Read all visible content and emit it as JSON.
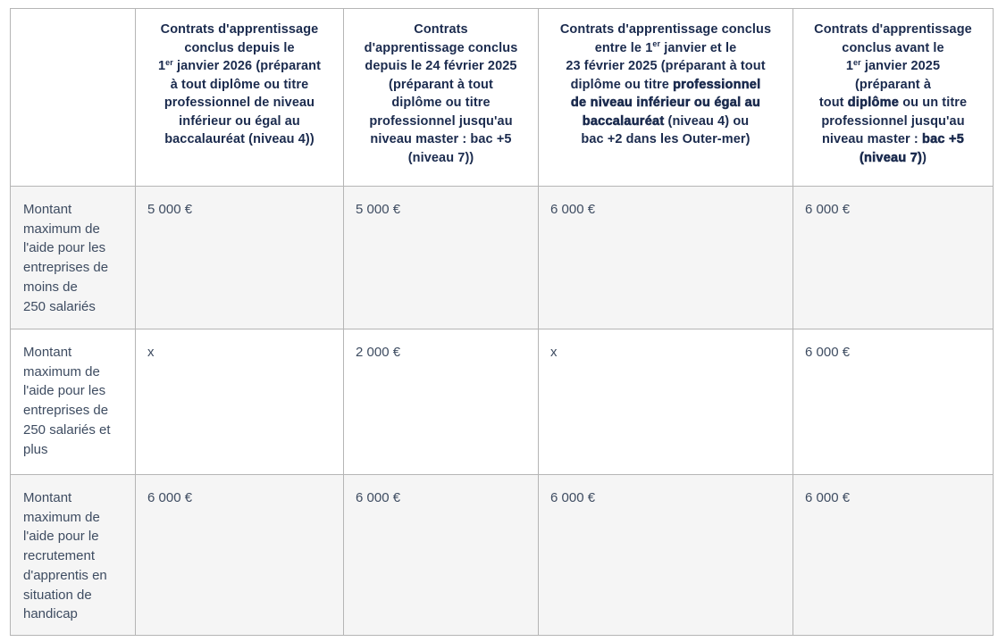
{
  "colors": {
    "header_text": "#1b2b4e",
    "body_text": "#3e4c61",
    "stripe_row_background": "#f5f5f5",
    "border": "#b5b5b5",
    "page_background": "#ffffff"
  },
  "table": {
    "corner_label": "",
    "columns": [
      {
        "id": "contracts-since-jan-2026",
        "runs": [
          {
            "t": "Contrats d'apprentissage"
          },
          {
            "br": true
          },
          {
            "t": "conclus depuis le"
          },
          {
            "br": true
          },
          {
            "t": "1"
          },
          {
            "t": "er",
            "sup": true
          },
          {
            "t": " janvier 2026 (préparant"
          },
          {
            "br": true
          },
          {
            "t": "à tout diplôme ou titre"
          },
          {
            "br": true
          },
          {
            "t": "professionnel de niveau"
          },
          {
            "br": true
          },
          {
            "t": "inférieur ou égal au"
          },
          {
            "br": true
          },
          {
            "t": "baccalauréat (niveau 4))"
          }
        ]
      },
      {
        "id": "contracts-since-feb-24-2025",
        "runs": [
          {
            "t": "Contrats"
          },
          {
            "br": true
          },
          {
            "t": "d'apprentissage conclus"
          },
          {
            "br": true
          },
          {
            "t": "depuis le 24 février 2025"
          },
          {
            "br": true
          },
          {
            "t": "(préparant à tout"
          },
          {
            "br": true
          },
          {
            "t": "diplôme ou titre"
          },
          {
            "br": true
          },
          {
            "t": "professionnel jusqu'au"
          },
          {
            "br": true
          },
          {
            "t": "niveau master : bac +5"
          },
          {
            "br": true
          },
          {
            "t": "(niveau 7))"
          }
        ]
      },
      {
        "id": "contracts-jan-1-to-feb-23-2025",
        "runs": [
          {
            "t": "Contrats d'apprentissage conclus"
          },
          {
            "br": true
          },
          {
            "t": "entre le 1"
          },
          {
            "t": "er",
            "sup": true
          },
          {
            "t": " janvier et le"
          },
          {
            "br": true
          },
          {
            "t": "23 février 2025 (préparant à tout"
          },
          {
            "br": true
          },
          {
            "t": "diplôme ou titre "
          },
          {
            "t": "professionnel",
            "xb": true
          },
          {
            "br": true
          },
          {
            "t": "de niveau inférieur ou égal au",
            "xb": true
          },
          {
            "br": true
          },
          {
            "t": "baccalauréat",
            "xb": true
          },
          {
            "t": " (niveau 4) ou"
          },
          {
            "br": true
          },
          {
            "t": "bac +2 dans les Outer-mer)"
          }
        ]
      },
      {
        "id": "contracts-before-jan-2025",
        "runs": [
          {
            "t": "Contrats d'apprentissage"
          },
          {
            "br": true
          },
          {
            "t": "conclus avant le"
          },
          {
            "br": true
          },
          {
            "t": "1"
          },
          {
            "t": "er",
            "sup": true
          },
          {
            "t": " janvier 2025"
          },
          {
            "br": true
          },
          {
            "t": "(préparant à"
          },
          {
            "br": true
          },
          {
            "t": "tout "
          },
          {
            "t": "diplôme",
            "xb": true
          },
          {
            "t": " ou un titre"
          },
          {
            "br": true
          },
          {
            "t": "professionnel jusqu'au"
          },
          {
            "br": true
          },
          {
            "t": "niveau master : "
          },
          {
            "t": "bac +5",
            "xb": true
          },
          {
            "br": true
          },
          {
            "t": "(niveau 7)",
            "xb": true
          },
          {
            "t": ")"
          }
        ]
      }
    ],
    "rows": [
      {
        "label": "Montant maximum de l'aide pour les entreprises de moins de 250 salariés",
        "values": [
          "5 000 €",
          "5 000 €",
          "6 000 €",
          "6 000 €"
        ]
      },
      {
        "label": "Montant maximum de l'aide pour les entreprises de 250 salariés et plus",
        "values": [
          "x",
          "2 000 €",
          "x",
          "6 000 €"
        ]
      },
      {
        "label": "Montant maximum de l'aide pour le recrutement d'apprentis en situation de handicap",
        "values": [
          "6 000 €",
          "6 000 €",
          "6 000 €",
          "6 000 €"
        ]
      }
    ]
  }
}
